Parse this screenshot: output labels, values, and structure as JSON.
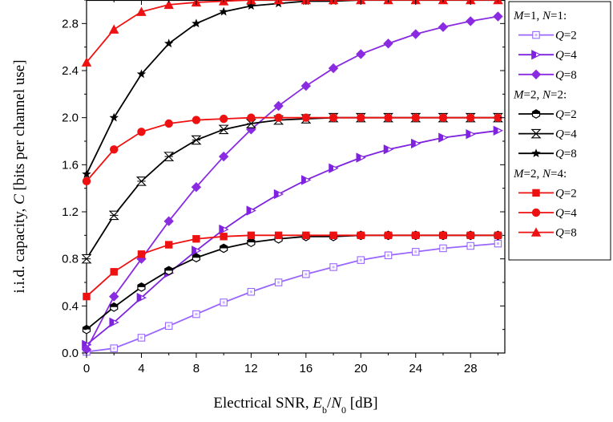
{
  "chart_data": {
    "type": "line",
    "xlabel_parts": [
      "Electrical SNR, ",
      "E",
      "b",
      "/",
      "N",
      "0",
      " [dB]"
    ],
    "ylabel_parts": [
      "i.i.d. capacity, ",
      "C",
      " [bits per channel use]"
    ],
    "xlim": [
      0,
      30.5
    ],
    "ylim": [
      0,
      3.0
    ],
    "xticks": [
      0,
      4,
      8,
      12,
      16,
      20,
      24,
      28
    ],
    "yticks": [
      0.0,
      0.4,
      0.8,
      1.2,
      1.6,
      2.0,
      2.4,
      2.8
    ],
    "x_tick_labels": [
      "0",
      "4",
      "8",
      "12",
      "16",
      "20",
      "24",
      "28"
    ],
    "y_tick_labels": [
      "0.0",
      "0.4",
      "0.8",
      "1.2",
      "1.6",
      "2.0",
      "2.4",
      "2.8"
    ],
    "grid": false,
    "legend_position": "right-outside-top",
    "legend_groups": [
      {
        "header_parts": [
          "M",
          "=1, ",
          "N",
          "=1:"
        ],
        "series_indices": [
          0,
          1,
          2
        ]
      },
      {
        "header_parts": [
          "M",
          "=2, ",
          "N",
          "=2:"
        ],
        "series_indices": [
          3,
          4,
          5
        ]
      },
      {
        "header_parts": [
          "M",
          "=2, ",
          "N",
          "=4:"
        ],
        "series_indices": [
          6,
          7,
          8
        ]
      }
    ],
    "series": [
      {
        "label_q": "Q",
        "label_val": "=2",
        "color": "#9966ff",
        "marker": "square-open",
        "x": [
          0,
          2,
          4,
          6,
          8,
          10,
          12,
          14,
          16,
          18,
          20,
          22,
          24,
          26,
          28,
          30
        ],
        "y": [
          0.01,
          0.04,
          0.13,
          0.23,
          0.33,
          0.43,
          0.52,
          0.6,
          0.67,
          0.73,
          0.79,
          0.83,
          0.86,
          0.89,
          0.91,
          0.93
        ]
      },
      {
        "label_q": "Q",
        "label_val": "=4",
        "color": "#7f22e0",
        "marker": "triangle-right-half",
        "x": [
          0,
          2,
          4,
          6,
          8,
          10,
          12,
          14,
          16,
          18,
          20,
          22,
          24,
          26,
          28,
          30
        ],
        "y": [
          0.07,
          0.26,
          0.47,
          0.68,
          0.87,
          1.05,
          1.21,
          1.35,
          1.47,
          1.57,
          1.66,
          1.73,
          1.78,
          1.83,
          1.86,
          1.89
        ]
      },
      {
        "label_q": "Q",
        "label_val": "=8",
        "color": "#8a2be2",
        "marker": "diamond",
        "x": [
          0,
          2,
          4,
          6,
          8,
          10,
          12,
          14,
          16,
          18,
          20,
          22,
          24,
          26,
          28,
          30
        ],
        "y": [
          0.03,
          0.48,
          0.8,
          1.12,
          1.41,
          1.67,
          1.9,
          2.1,
          2.27,
          2.42,
          2.54,
          2.63,
          2.71,
          2.77,
          2.82,
          2.86
        ]
      },
      {
        "label_q": "Q",
        "label_val": "=2",
        "color": "#000000",
        "marker": "hexagon-half",
        "x": [
          0,
          2,
          4,
          6,
          8,
          10,
          12,
          14,
          16,
          18,
          20,
          22,
          24,
          26,
          28,
          30
        ],
        "y": [
          0.2,
          0.39,
          0.56,
          0.7,
          0.81,
          0.89,
          0.94,
          0.97,
          0.99,
          0.99,
          1.0,
          1.0,
          1.0,
          1.0,
          1.0,
          1.0
        ]
      },
      {
        "label_q": "Q",
        "label_val": "=4",
        "color": "#000000",
        "marker": "hourglass-open",
        "x": [
          0,
          2,
          4,
          6,
          8,
          10,
          12,
          14,
          16,
          18,
          20,
          22,
          24,
          26,
          28,
          30
        ],
        "y": [
          0.8,
          1.17,
          1.46,
          1.67,
          1.81,
          1.9,
          1.95,
          1.98,
          1.99,
          2.0,
          2.0,
          2.0,
          2.0,
          2.0,
          2.0,
          2.0
        ]
      },
      {
        "label_q": "Q",
        "label_val": "=8",
        "color": "#000000",
        "marker": "star",
        "x": [
          0,
          2,
          4,
          6,
          8,
          10,
          12,
          14,
          16,
          18,
          20,
          22,
          24,
          26,
          28,
          30
        ],
        "y": [
          1.52,
          2.0,
          2.37,
          2.63,
          2.8,
          2.9,
          2.95,
          2.97,
          2.99,
          2.99,
          3.0,
          3.0,
          3.0,
          3.0,
          3.0,
          3.0
        ]
      },
      {
        "label_q": "Q",
        "label_val": "=2",
        "color": "#ee1111",
        "marker": "square",
        "x": [
          0,
          2,
          4,
          6,
          8,
          10,
          12,
          14,
          16,
          18,
          20,
          22,
          24,
          26,
          28,
          30
        ],
        "y": [
          0.48,
          0.69,
          0.84,
          0.92,
          0.97,
          0.99,
          1.0,
          1.0,
          1.0,
          1.0,
          1.0,
          1.0,
          1.0,
          1.0,
          1.0,
          1.0
        ]
      },
      {
        "label_q": "Q",
        "label_val": "=4",
        "color": "#ee1111",
        "marker": "circle",
        "x": [
          0,
          2,
          4,
          6,
          8,
          10,
          12,
          14,
          16,
          18,
          20,
          22,
          24,
          26,
          28,
          30
        ],
        "y": [
          1.46,
          1.73,
          1.88,
          1.95,
          1.98,
          1.99,
          2.0,
          2.0,
          2.0,
          2.0,
          2.0,
          2.0,
          2.0,
          2.0,
          2.0,
          2.0
        ]
      },
      {
        "label_q": "Q",
        "label_val": "=8",
        "color": "#ee1111",
        "marker": "triangle-up",
        "x": [
          0,
          2,
          4,
          6,
          8,
          10,
          12,
          14,
          16,
          18,
          20,
          22,
          24,
          26,
          28,
          30
        ],
        "y": [
          2.47,
          2.75,
          2.9,
          2.96,
          2.98,
          2.99,
          3.0,
          3.0,
          3.0,
          3.0,
          3.0,
          3.0,
          3.0,
          3.0,
          3.0,
          3.0
        ]
      }
    ]
  }
}
